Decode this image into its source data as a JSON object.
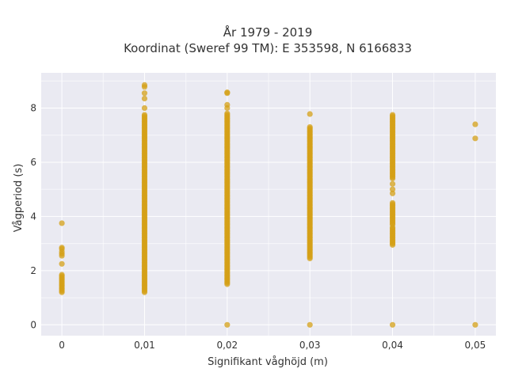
{
  "chart_data": {
    "type": "scatter",
    "title_lines": [
      "År 1979 - 2019",
      "Koordinat (Sweref 99 TM): E 353598, N 6166833"
    ],
    "xlabel": "Signifikant våghöjd (m)",
    "ylabel": "Vågperiod (s)",
    "x_ticks": [
      {
        "value": 0,
        "label": "0"
      },
      {
        "value": 0.01,
        "label": "0,01"
      },
      {
        "value": 0.02,
        "label": "0,02"
      },
      {
        "value": 0.03,
        "label": "0,03"
      },
      {
        "value": 0.04,
        "label": "0,04"
      },
      {
        "value": 0.05,
        "label": "0,05"
      }
    ],
    "y_ticks": [
      {
        "value": 0,
        "label": "0"
      },
      {
        "value": 2,
        "label": "2"
      },
      {
        "value": 4,
        "label": "4"
      },
      {
        "value": 6,
        "label": "6"
      },
      {
        "value": 8,
        "label": "8"
      }
    ],
    "xlim": [
      -0.0025,
      0.0525
    ],
    "ylim": [
      -0.4,
      9.3
    ],
    "grid": true,
    "background_color": "#eaeaf2",
    "point_color": "#d4a017",
    "columns": [
      {
        "x": 0,
        "dense_ranges": [
          [
            1.2,
            1.85
          ]
        ],
        "points": [
          2.25,
          2.55,
          2.62,
          2.7,
          2.8,
          2.85,
          3.75
        ]
      },
      {
        "x": 0.01,
        "dense_ranges": [
          [
            1.2,
            7.75
          ]
        ],
        "points": [
          8.0,
          8.35,
          8.55,
          8.78,
          8.85
        ]
      },
      {
        "x": 0.02,
        "dense_ranges": [
          [
            1.5,
            7.8
          ]
        ],
        "points": [
          0.0,
          8.0,
          8.12,
          8.55,
          8.58
        ]
      },
      {
        "x": 0.03,
        "dense_ranges": [
          [
            2.45,
            7.3
          ]
        ],
        "points": [
          0.0,
          7.78
        ]
      },
      {
        "x": 0.04,
        "dense_ranges": [
          [
            2.95,
            3.6
          ],
          [
            3.7,
            4.5
          ],
          [
            5.4,
            7.75
          ]
        ],
        "points": [
          0.0,
          4.85,
          5.0,
          5.2
        ]
      },
      {
        "x": 0.05,
        "dense_ranges": [],
        "points": [
          0.0,
          6.88,
          7.4
        ]
      }
    ]
  }
}
